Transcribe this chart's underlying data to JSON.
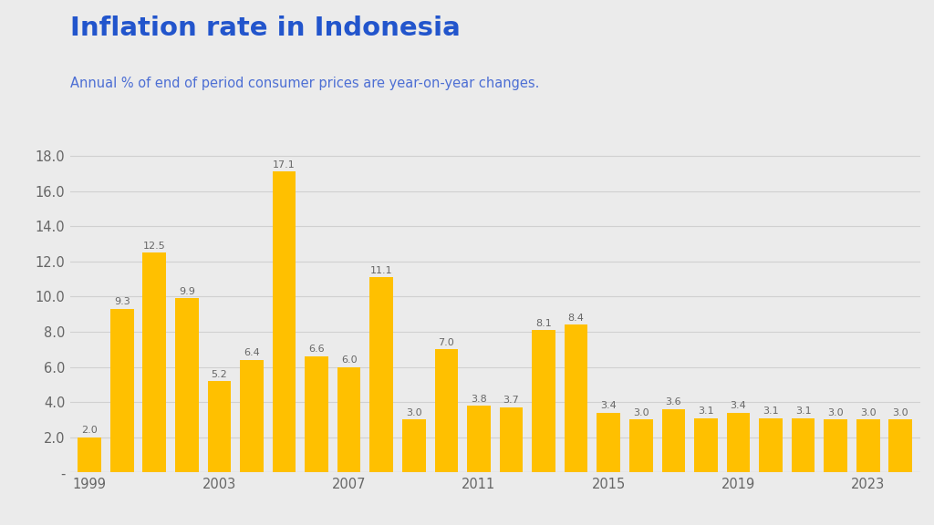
{
  "title": "Inflation rate in Indonesia",
  "subtitle": "Annual % of end of period consumer prices are year-on-year changes.",
  "title_color": "#2255cc",
  "subtitle_color": "#4d6fd4",
  "background_color": "#ebebeb",
  "bar_color": "#FFC000",
  "years": [
    1999,
    2000,
    2001,
    2002,
    2003,
    2004,
    2005,
    2006,
    2007,
    2008,
    2009,
    2010,
    2011,
    2012,
    2013,
    2014,
    2015,
    2016,
    2017,
    2018,
    2019,
    2020,
    2021,
    2022,
    2023,
    2024
  ],
  "values": [
    2.0,
    9.3,
    12.5,
    9.9,
    5.2,
    6.4,
    17.1,
    6.6,
    6.0,
    11.1,
    3.0,
    7.0,
    3.8,
    3.7,
    8.1,
    8.4,
    3.4,
    3.0,
    3.6,
    3.1,
    3.4,
    3.1,
    3.1,
    3.0,
    3.0,
    3.0
  ],
  "ylim": [
    0,
    18.8
  ],
  "yticks": [
    0,
    2.0,
    4.0,
    6.0,
    8.0,
    10.0,
    12.0,
    14.0,
    16.0,
    18.0
  ],
  "ytick_labels": [
    "-",
    "2.0",
    "4.0",
    "6.0",
    "8.0",
    "10.0",
    "12.0",
    "14.0",
    "16.0",
    "18.0"
  ],
  "xtick_years": [
    1999,
    2003,
    2007,
    2011,
    2015,
    2019,
    2023
  ],
  "label_color": "#666666",
  "grid_color": "#d0d0d0",
  "title_fontsize": 21,
  "subtitle_fontsize": 10.5,
  "bar_label_fontsize": 8.0,
  "tick_fontsize": 10.5,
  "bar_width": 0.72
}
